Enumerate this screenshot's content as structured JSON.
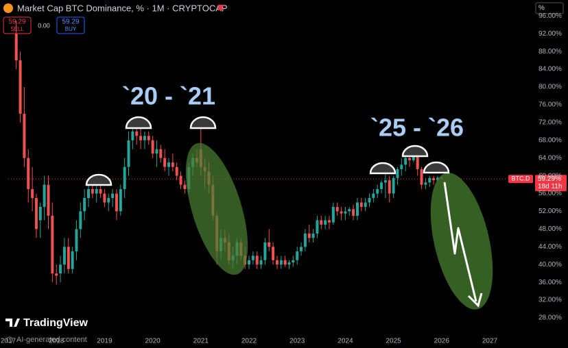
{
  "chart_data": {
    "type": "candlestick",
    "title": "Market Cap BTC Dominance, % · 1M · CRYPTOCAP",
    "annotations": [
      "`20 - `21",
      "`25 - `26"
    ],
    "categories": [
      "2017",
      null,
      null,
      null,
      null,
      null,
      null,
      null,
      null,
      null,
      null,
      null,
      "2018",
      null,
      null,
      null,
      null,
      null,
      null,
      null,
      null,
      null,
      null,
      null,
      "2019",
      null,
      null,
      null,
      null,
      null,
      null,
      null,
      null,
      null,
      null,
      null,
      "2020",
      null,
      null,
      null,
      null,
      null,
      null,
      null,
      null,
      null,
      null,
      null,
      "2021",
      null,
      null,
      null,
      null,
      null,
      null,
      null,
      null,
      null,
      null,
      null,
      "2022",
      null,
      null,
      null,
      null,
      null,
      null,
      null,
      null,
      null,
      null,
      null,
      "2023",
      null,
      null,
      null,
      null,
      null,
      null,
      null,
      null,
      null,
      null,
      null,
      "2024",
      null,
      null,
      null,
      null,
      null,
      null,
      null,
      null,
      null,
      null,
      null,
      "2025",
      null,
      null,
      null,
      null,
      null,
      null,
      null,
      null,
      null,
      null,
      null,
      "2026",
      null,
      null,
      null,
      null,
      null,
      null,
      null,
      null,
      null,
      null,
      null,
      "2027"
    ],
    "open": [
      null,
      null,
      92,
      86,
      74,
      64,
      57,
      55,
      50,
      53,
      58,
      51,
      38,
      38,
      40,
      44,
      39,
      43,
      48,
      52,
      55,
      57,
      56,
      57,
      56,
      54,
      55,
      56,
      52,
      57,
      62,
      68,
      70,
      69,
      68,
      69,
      68,
      65,
      66,
      64,
      62,
      63,
      62,
      60,
      58,
      57,
      62,
      64,
      66,
      62,
      61,
      58,
      51,
      43,
      46,
      45,
      41,
      42,
      45,
      42,
      40,
      41,
      42,
      40,
      41,
      45,
      44,
      41,
      40,
      41,
      40,
      40.5,
      41,
      43,
      44,
      47,
      46,
      47,
      50,
      49,
      50,
      49.5,
      53,
      52,
      51.5,
      52,
      52.5,
      51,
      54,
      53,
      54,
      55,
      56,
      57,
      58.5,
      59,
      56,
      59.5,
      61.5,
      62.5,
      64,
      63.5,
      65,
      61.5,
      58,
      58.5,
      59.5,
      59,
      59.6,
      null,
      null,
      null,
      null,
      null,
      null,
      null,
      null,
      null,
      null,
      null,
      null
    ],
    "high": [
      null,
      null,
      95,
      88,
      80,
      66,
      62,
      56,
      54,
      60,
      60,
      54,
      40,
      42,
      46,
      46,
      44,
      50,
      54,
      57,
      59,
      58,
      58,
      58,
      57,
      56,
      57,
      57,
      58,
      64,
      70,
      72,
      73,
      71,
      70,
      70,
      69,
      68,
      67,
      66,
      64,
      65,
      63,
      61,
      59,
      63,
      65,
      66,
      73,
      64,
      63,
      60,
      52,
      48,
      48,
      47,
      44,
      46,
      46,
      44,
      42,
      43,
      43,
      42,
      46,
      48,
      45,
      42,
      42,
      42,
      41,
      42,
      44,
      45,
      48,
      49,
      48,
      51,
      51,
      51,
      51,
      54,
      54,
      53,
      53,
      53,
      53.5,
      55,
      55,
      55,
      56,
      57,
      58,
      59,
      61,
      60,
      60,
      62,
      64,
      65,
      66,
      66,
      66,
      62,
      59.5,
      60,
      60,
      60,
      60,
      null,
      null,
      null,
      null,
      null,
      null,
      null,
      null,
      null,
      null,
      null,
      null
    ],
    "low": [
      null,
      null,
      84,
      72,
      62,
      54,
      52,
      46,
      46,
      50,
      48,
      36,
      35.5,
      36,
      38,
      38,
      38,
      41,
      46,
      50,
      53,
      55,
      54,
      55,
      53,
      52,
      53,
      50,
      51,
      55,
      60,
      66,
      67,
      66,
      66,
      67,
      64,
      62,
      63,
      61,
      60,
      61,
      59,
      57,
      56,
      56,
      60,
      62,
      60,
      57,
      56,
      50,
      40,
      41,
      43,
      40,
      39,
      40,
      41,
      39,
      39,
      40,
      39,
      39,
      40,
      43,
      40,
      39,
      39,
      39.5,
      39,
      39.5,
      40,
      42,
      43,
      45,
      45,
      46,
      48,
      48,
      48,
      49,
      51,
      50,
      50,
      51,
      50,
      50,
      52,
      52,
      53,
      54,
      55,
      56,
      55,
      54,
      55,
      58,
      60,
      61,
      62,
      63,
      60,
      57,
      57,
      57.5,
      58,
      58.5,
      59,
      null,
      null,
      null,
      null,
      null,
      null,
      null,
      null,
      null,
      null,
      null,
      null
    ],
    "close": [
      null,
      null,
      86,
      74,
      64,
      57,
      55,
      48,
      53,
      58,
      51,
      38,
      37.5,
      40,
      44,
      39,
      43,
      48,
      52,
      55,
      57,
      56,
      57,
      56,
      54,
      55,
      56,
      52,
      57,
      62,
      68,
      70,
      69,
      68,
      69,
      68,
      65,
      66,
      64,
      62,
      63,
      62,
      60,
      58,
      57,
      62,
      64,
      63,
      62,
      61,
      58,
      51,
      43,
      46,
      45,
      41,
      42,
      45,
      42,
      40,
      41,
      42,
      40,
      41,
      45,
      44,
      41,
      40,
      41,
      40,
      40.5,
      41,
      43,
      44,
      47,
      46,
      47,
      50,
      49,
      50,
      49.5,
      53,
      52,
      51.5,
      52,
      52.5,
      51,
      54,
      53,
      54,
      55,
      56,
      57,
      58.5,
      59,
      56,
      59.5,
      61.5,
      62.5,
      64,
      63.5,
      65,
      61.5,
      58,
      58.5,
      59.5,
      59,
      59.6,
      59.29,
      null,
      null,
      null,
      null,
      null,
      null,
      null,
      null,
      null,
      null,
      null,
      null
    ],
    "up_color": "#26a69a",
    "down_color": "#ef5350",
    "ylim": [
      24.3,
      99.6
    ],
    "yticks": [
      {
        "value": 28,
        "label": "28.00%"
      },
      {
        "value": 32,
        "label": "32.00%"
      },
      {
        "value": 36,
        "label": "36.00%"
      },
      {
        "value": 40,
        "label": "40.00%"
      },
      {
        "value": 44,
        "label": "44.00%"
      },
      {
        "value": 48,
        "label": "48.00%"
      },
      {
        "value": 52,
        "label": "52.00%"
      },
      {
        "value": 56,
        "label": "56.00%"
      },
      {
        "value": 60,
        "label": "60.00%"
      },
      {
        "value": 64,
        "label": "64.00%"
      },
      {
        "value": 68,
        "label": "68.00%"
      },
      {
        "value": 72,
        "label": "72.00%"
      },
      {
        "value": 76,
        "label": "76.00%"
      },
      {
        "value": 80,
        "label": "80.00%"
      },
      {
        "value": 84,
        "label": "84.00%"
      },
      {
        "value": 88,
        "label": "88.00%"
      },
      {
        "value": 92,
        "label": "92.00%"
      },
      {
        "value": 96,
        "label": "96.00%"
      }
    ],
    "last_price": {
      "value": 59.29,
      "label": "59.29%"
    },
    "symbol_tag": "BTC.D",
    "countdown": "18d 11h"
  },
  "ui": {
    "sell_price": "59.29",
    "sell_label": "SELL",
    "spread": "0.00",
    "buy_price": "59.29",
    "buy_label": "BUY",
    "scale_button": "%",
    "watermark": "TradingView",
    "ai_note": "AI-generated content"
  }
}
